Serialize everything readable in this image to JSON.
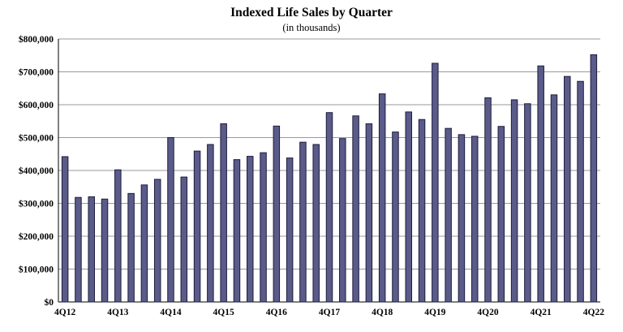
{
  "chart_data": {
    "type": "bar",
    "title": "Indexed Life Sales by Quarter",
    "subtitle": "(in thousands)",
    "xlabel": "",
    "ylabel": "",
    "ylim": [
      0,
      800000
    ],
    "yticks": [
      {
        "value": 0,
        "label": "$0"
      },
      {
        "value": 100000,
        "label": "$100,000"
      },
      {
        "value": 200000,
        "label": "$200,000"
      },
      {
        "value": 300000,
        "label": "$300,000"
      },
      {
        "value": 400000,
        "label": "$400,000"
      },
      {
        "value": 500000,
        "label": "$500,000"
      },
      {
        "value": 600000,
        "label": "$600,000"
      },
      {
        "value": 700000,
        "label": "$700,000"
      },
      {
        "value": 800000,
        "label": "$800,000"
      }
    ],
    "grid": true,
    "bar_color": "#5b5b8a",
    "bar_edge_color": "#1c1c3c",
    "categories": [
      "4Q12",
      "1Q13",
      "2Q13",
      "3Q13",
      "4Q13",
      "1Q14",
      "2Q14",
      "3Q14",
      "4Q14",
      "1Q15",
      "2Q15",
      "3Q15",
      "4Q15",
      "1Q16",
      "2Q16",
      "3Q16",
      "4Q16",
      "1Q17",
      "2Q17",
      "3Q17",
      "4Q17",
      "1Q18",
      "2Q18",
      "3Q18",
      "4Q18",
      "1Q19",
      "2Q19",
      "3Q19",
      "4Q19",
      "1Q20",
      "2Q20",
      "3Q20",
      "4Q20",
      "1Q21",
      "2Q21",
      "3Q21",
      "4Q21",
      "1Q22",
      "2Q22",
      "3Q22",
      "4Q22"
    ],
    "tick_labels": [
      "4Q12",
      "4Q13",
      "4Q14",
      "4Q15",
      "4Q16",
      "4Q17",
      "4Q18",
      "4Q19",
      "4Q20",
      "4Q21",
      "4Q22"
    ],
    "values": [
      442000,
      318000,
      320000,
      313000,
      402000,
      330000,
      356000,
      373000,
      500000,
      380000,
      459000,
      479000,
      542000,
      433000,
      443000,
      454000,
      535000,
      438000,
      486000,
      479000,
      576000,
      497000,
      566000,
      542000,
      633000,
      517000,
      578000,
      555000,
      726000,
      528000,
      509000,
      504000,
      621000,
      534000,
      615000,
      603000,
      718000,
      630000,
      686000,
      671000,
      752000
    ]
  }
}
